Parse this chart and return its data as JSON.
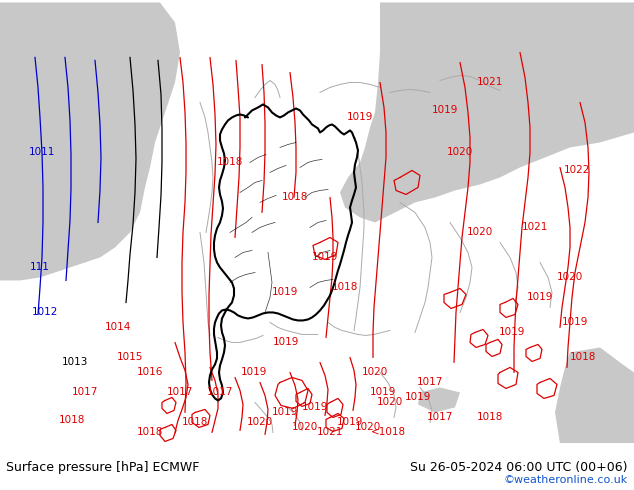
{
  "title_left": "Surface pressure [hPa] ECMWF",
  "title_right": "Su 26-05-2024 06:00 UTC (00+06)",
  "credit": "©weatheronline.co.uk",
  "bg_green": "#b5e085",
  "bg_grey": "#c8c8c8",
  "bg_white": "#ffffff",
  "red": "#dd0000",
  "blue": "#0000cc",
  "black": "#000000",
  "grey_line": "#aaaaaa",
  "credit_color": "#1155cc",
  "figsize": [
    6.34,
    4.9
  ],
  "dpi": 100,
  "footer_fs": 9,
  "label_fs": 7.5
}
